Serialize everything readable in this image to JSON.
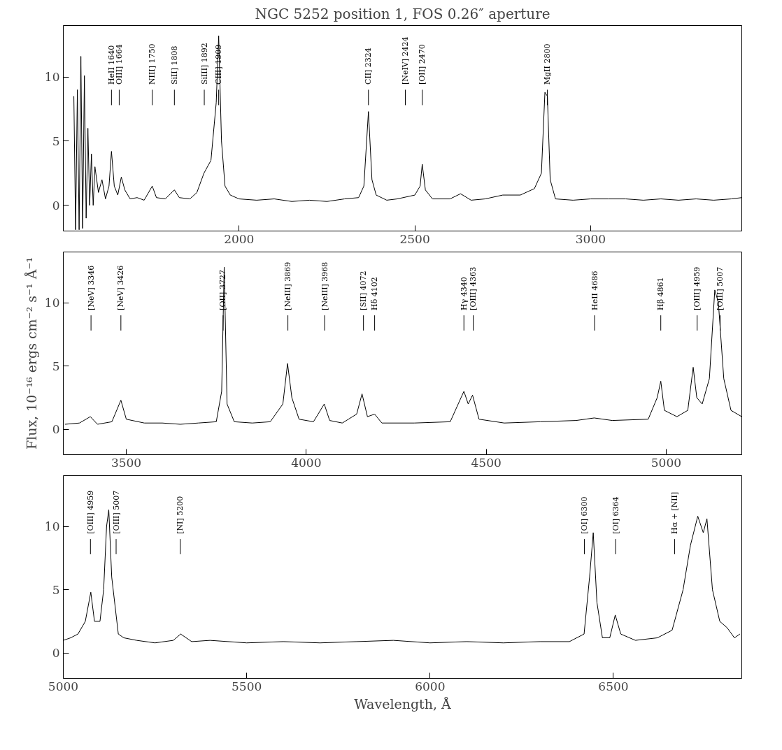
{
  "chart_data": [
    {
      "type": "line",
      "title": "NGC 5252 position 1, FOS 0.26″ aperture",
      "xlim": [
        1500,
        3430
      ],
      "ylim": [
        -2,
        14
      ],
      "xticks": [
        2000,
        2500,
        3000
      ],
      "yticks": [
        0,
        5,
        10
      ],
      "x": [
        1530,
        1535,
        1540,
        1545,
        1550,
        1555,
        1560,
        1565,
        1570,
        1575,
        1580,
        1585,
        1590,
        1600,
        1610,
        1620,
        1630,
        1637,
        1645,
        1655,
        1665,
        1675,
        1690,
        1710,
        1730,
        1753,
        1765,
        1790,
        1816,
        1830,
        1860,
        1880,
        1900,
        1920,
        1935,
        1942,
        1950,
        1960,
        1975,
        2000,
        2050,
        2100,
        2150,
        2200,
        2250,
        2300,
        2340,
        2355,
        2368,
        2378,
        2390,
        2420,
        2450,
        2500,
        2515,
        2521,
        2530,
        2550,
        2600,
        2630,
        2660,
        2700,
        2750,
        2800,
        2840,
        2860,
        2870,
        2877,
        2885,
        2900,
        2950,
        3000,
        3050,
        3100,
        3150,
        3200,
        3250,
        3300,
        3350,
        3400,
        3430
      ],
      "series": [
        {
          "color": "#000000",
          "values": [
            8.5,
            -1.9,
            9,
            -1.9,
            11.6,
            -1.8,
            10.1,
            -1,
            6,
            0,
            4,
            0,
            3,
            1,
            2,
            0.5,
            1.5,
            4.2,
            1.5,
            0.8,
            2.2,
            1.2,
            0.5,
            0.6,
            0.4,
            1.5,
            0.6,
            0.5,
            1.2,
            0.6,
            0.5,
            1.0,
            2.5,
            3.5,
            8,
            13.2,
            5,
            1.5,
            0.8,
            0.5,
            0.4,
            0.5,
            0.3,
            0.4,
            0.3,
            0.5,
            0.6,
            1.5,
            7.3,
            2,
            0.8,
            0.4,
            0.5,
            0.8,
            1.5,
            3.2,
            1.2,
            0.5,
            0.5,
            0.9,
            0.4,
            0.5,
            0.8,
            0.8,
            1.3,
            2.5,
            8.8,
            8.5,
            2,
            0.5,
            0.4,
            0.5,
            0.5,
            0.5,
            0.4,
            0.5,
            0.4,
            0.5,
            0.4,
            0.5,
            0.6
          ]
        }
      ],
      "ref_lines": [
        {
          "axis": "x",
          "value": 1637,
          "label": "HeII 1640"
        },
        {
          "axis": "x",
          "value": 1659,
          "label": "OIII] 1664"
        },
        {
          "axis": "x",
          "value": 1753,
          "label": "NIII] 1750"
        },
        {
          "axis": "x",
          "value": 1816,
          "label": "SiII] 1808"
        },
        {
          "axis": "x",
          "value": 1901,
          "label": "SiIII] 1892"
        },
        {
          "axis": "x",
          "value": 1942,
          "label": "CIII] 1909"
        },
        {
          "axis": "x",
          "value": 2368,
          "label": "CII] 2324"
        },
        {
          "axis": "x",
          "value": 2473,
          "label": "[NeIV] 2424"
        },
        {
          "axis": "x",
          "value": 2521,
          "label": "[OII] 2470"
        },
        {
          "axis": "x",
          "value": 2877,
          "label": "MgII 2800"
        }
      ]
    },
    {
      "type": "line",
      "ylabel": "Flux, 10⁻¹⁶ ergs cm⁻² s⁻¹ Å⁻¹",
      "xlim": [
        3325,
        5210
      ],
      "ylim": [
        -2,
        14
      ],
      "xticks": [
        3500,
        4000,
        4500,
        5000
      ],
      "yticks": [
        0,
        5,
        10
      ],
      "x": [
        3330,
        3370,
        3400,
        3420,
        3460,
        3485,
        3500,
        3550,
        3600,
        3650,
        3700,
        3750,
        3765,
        3772,
        3780,
        3800,
        3850,
        3900,
        3935,
        3948,
        3960,
        3980,
        4020,
        4050,
        4065,
        4100,
        4140,
        4155,
        4170,
        4190,
        4210,
        4300,
        4400,
        4430,
        4438,
        4450,
        4462,
        4480,
        4550,
        4650,
        4750,
        4800,
        4850,
        4950,
        4975,
        4985,
        4995,
        5030,
        5060,
        5075,
        5085,
        5100,
        5120,
        5135,
        5145,
        5160,
        5180,
        5210
      ],
      "series": [
        {
          "color": "#000000",
          "values": [
            0.4,
            0.5,
            1.0,
            0.4,
            0.6,
            2.3,
            0.8,
            0.5,
            0.5,
            0.4,
            0.5,
            0.6,
            3,
            12.8,
            2,
            0.6,
            0.5,
            0.6,
            2,
            5.2,
            2.5,
            0.8,
            0.6,
            2.0,
            0.7,
            0.5,
            1.2,
            2.8,
            1.0,
            1.2,
            0.5,
            0.5,
            0.6,
            2.5,
            3.0,
            2.0,
            2.7,
            0.8,
            0.5,
            0.6,
            0.7,
            0.9,
            0.7,
            0.8,
            2.5,
            3.8,
            1.5,
            1.0,
            1.5,
            4.9,
            2.5,
            2,
            4,
            11,
            10,
            4,
            1.5,
            1.0
          ]
        }
      ],
      "ref_lines": [
        {
          "axis": "x",
          "value": 3402,
          "label": "[NeV] 3346"
        },
        {
          "axis": "x",
          "value": 3485,
          "label": "[NeV] 3426"
        },
        {
          "axis": "x",
          "value": 3769,
          "label": "[OII] 3727"
        },
        {
          "axis": "x",
          "value": 3949,
          "label": "[NeIII] 3869"
        },
        {
          "axis": "x",
          "value": 4051,
          "label": "[NeIII] 3968"
        },
        {
          "axis": "x",
          "value": 4159,
          "label": "[SII] 4072"
        },
        {
          "axis": "x",
          "value": 4190,
          "label": "Hδ 4102"
        },
        {
          "axis": "x",
          "value": 4438,
          "label": "Hγ 4340"
        },
        {
          "axis": "x",
          "value": 4464,
          "label": "[OIII] 4363"
        },
        {
          "axis": "x",
          "value": 4801,
          "label": "HeII 4686"
        },
        {
          "axis": "x",
          "value": 4985,
          "label": "Hβ 4861"
        },
        {
          "axis": "x",
          "value": 5086,
          "label": "[OIII] 4959"
        },
        {
          "axis": "x",
          "value": 5150,
          "label": "[OIII] 5007"
        }
      ]
    },
    {
      "type": "line",
      "xlabel": "Wavelength, Å",
      "xlim": [
        5000,
        6850
      ],
      "ylim": [
        -2,
        14
      ],
      "xticks": [
        5000,
        5500,
        6000,
        6500
      ],
      "yticks": [
        0,
        5,
        10
      ],
      "x": [
        5000,
        5020,
        5040,
        5060,
        5075,
        5085,
        5100,
        5110,
        5118,
        5124,
        5132,
        5150,
        5165,
        5200,
        5250,
        5300,
        5320,
        5350,
        5400,
        5500,
        5600,
        5700,
        5800,
        5900,
        6000,
        6100,
        6200,
        6300,
        6380,
        6420,
        6435,
        6445,
        6455,
        6470,
        6490,
        6505,
        6520,
        6560,
        6620,
        6660,
        6690,
        6710,
        6730,
        6745,
        6755,
        6770,
        6790,
        6810,
        6830,
        6845
      ],
      "series": [
        {
          "color": "#000000",
          "values": [
            1.0,
            1.2,
            1.5,
            2.5,
            4.8,
            2.5,
            2.5,
            5,
            10,
            11.3,
            6,
            1.5,
            1.2,
            1.0,
            0.8,
            1.0,
            1.5,
            0.9,
            1.0,
            0.8,
            0.9,
            0.8,
            0.9,
            1.0,
            0.8,
            0.9,
            0.8,
            0.9,
            0.9,
            1.5,
            6,
            9.5,
            4,
            1.2,
            1.2,
            3.0,
            1.5,
            1.0,
            1.2,
            1.8,
            5,
            8.5,
            10.8,
            9.5,
            10.6,
            5,
            2.5,
            2.0,
            1.2,
            1.5
          ]
        }
      ],
      "ref_lines": [
        {
          "axis": "x",
          "value": 5074,
          "label": "[OIII] 4959"
        },
        {
          "axis": "x",
          "value": 5144,
          "label": "[OIII] 5007"
        },
        {
          "axis": "x",
          "value": 5319,
          "label": "[NI] 5200"
        },
        {
          "axis": "x",
          "value": 6421,
          "label": "[OI] 6300"
        },
        {
          "axis": "x",
          "value": 6506,
          "label": "[OI] 6364"
        },
        {
          "axis": "x",
          "value": 6667,
          "label": "Hα + [NII]"
        }
      ]
    }
  ]
}
